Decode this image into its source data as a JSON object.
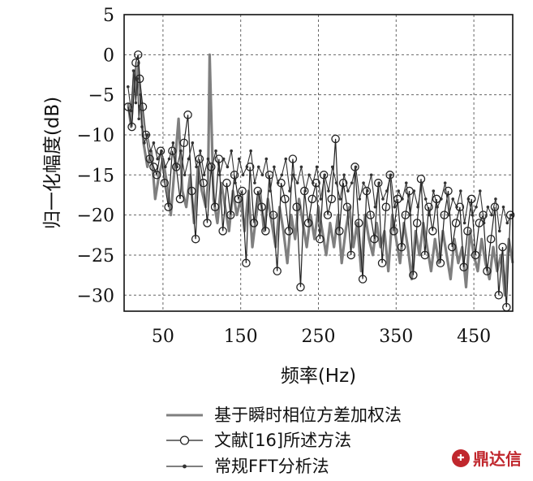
{
  "chart_data": {
    "type": "line",
    "title": "",
    "xlabel": "频率(Hz)",
    "ylabel": "归一化幅度(dB)",
    "xlim": [
      0,
      500
    ],
    "ylim": [
      -32,
      5
    ],
    "xticks": [
      50,
      150,
      250,
      350,
      450
    ],
    "yticks": [
      5,
      0,
      -5,
      -10,
      -15,
      -20,
      -25,
      -30
    ],
    "grid": true,
    "legend_position": "bottom",
    "series": [
      {
        "name": "基于瞬时相位方差加权法",
        "style": "gray-line",
        "color": "#7f7f7f",
        "x": [
          5,
          9,
          13,
          16,
          18,
          20,
          22,
          25,
          30,
          35,
          40,
          45,
          50,
          55,
          60,
          65,
          70,
          75,
          80,
          85,
          90,
          95,
          100,
          105,
          108,
          110,
          115,
          120,
          125,
          130,
          135,
          140,
          145,
          150,
          155,
          160,
          165,
          170,
          175,
          180,
          185,
          190,
          195,
          200,
          205,
          210,
          215,
          220,
          225,
          230,
          235,
          240,
          245,
          250,
          255,
          260,
          265,
          270,
          275,
          280,
          285,
          290,
          295,
          300,
          305,
          310,
          315,
          320,
          325,
          330,
          335,
          340,
          345,
          350,
          355,
          360,
          365,
          370,
          375,
          380,
          385,
          390,
          395,
          400,
          405,
          410,
          415,
          420,
          425,
          430,
          435,
          440,
          445,
          450,
          455,
          460,
          465,
          470,
          475,
          480,
          485,
          490,
          495,
          500
        ],
        "y": [
          -6,
          -9,
          -2,
          -5,
          -1,
          -4,
          -7,
          -11,
          -14,
          -12,
          -18,
          -15,
          -13,
          -16,
          -20,
          -14,
          -8,
          -17,
          -19,
          -15,
          -21,
          -14,
          -17,
          -19,
          -16,
          0,
          -18,
          -21,
          -16,
          -19,
          -22,
          -17,
          -20,
          -18,
          -22,
          -17,
          -24,
          -20,
          -17,
          -22,
          -18,
          -21,
          -24,
          -19,
          -22,
          -26,
          -20,
          -23,
          -18,
          -21,
          -24,
          -20,
          -23,
          -19,
          -22,
          -25,
          -21,
          -24,
          -20,
          -26,
          -22,
          -19,
          -24,
          -21,
          -27,
          -20,
          -23,
          -25,
          -21,
          -24,
          -22,
          -27,
          -20,
          -23,
          -26,
          -21,
          -24,
          -28,
          -22,
          -25,
          -21,
          -24,
          -27,
          -23,
          -26,
          -22,
          -25,
          -28,
          -23,
          -26,
          -24,
          -29,
          -22,
          -25,
          -27,
          -23,
          -26,
          -28,
          -24,
          -27,
          -25,
          -30,
          -23,
          -26
        ]
      },
      {
        "name": "文献[16]所述方法",
        "style": "line-circle",
        "color": "#222222",
        "x": [
          5,
          10,
          15,
          18,
          20,
          24,
          28,
          33,
          38,
          42,
          47,
          52,
          57,
          62,
          67,
          72,
          77,
          82,
          87,
          92,
          97,
          102,
          107,
          112,
          117,
          122,
          127,
          132,
          137,
          142,
          147,
          152,
          157,
          162,
          167,
          172,
          177,
          182,
          187,
          192,
          197,
          202,
          207,
          212,
          217,
          222,
          227,
          232,
          237,
          242,
          247,
          252,
          257,
          262,
          267,
          272,
          277,
          282,
          287,
          292,
          297,
          302,
          307,
          312,
          317,
          322,
          327,
          332,
          337,
          342,
          347,
          352,
          357,
          362,
          367,
          372,
          377,
          382,
          387,
          392,
          397,
          402,
          407,
          412,
          417,
          422,
          427,
          432,
          437,
          442,
          447,
          452,
          457,
          462,
          467,
          472,
          477,
          482,
          487,
          492,
          497
        ],
        "y": [
          -6.5,
          -9,
          -1,
          0,
          -3,
          -6.5,
          -10,
          -13,
          -14,
          -15,
          -12,
          -16,
          -19,
          -12,
          -14,
          -18,
          -11,
          -7.5,
          -17,
          -23,
          -13,
          -16,
          -21,
          -14,
          -19,
          -13,
          -22,
          -16,
          -20,
          -15,
          -18,
          -17,
          -26,
          -14,
          -21,
          -17,
          -19,
          -22,
          -15,
          -20,
          -27,
          -16,
          -18,
          -22,
          -13,
          -19,
          -29,
          -17,
          -21,
          -18,
          -16,
          -23,
          -15,
          -20,
          -18,
          -10.5,
          -22,
          -16,
          -19,
          -25,
          -14,
          -21,
          -28,
          -17,
          -20,
          -23,
          -16,
          -26,
          -19,
          -15,
          -22,
          -18,
          -24,
          -20,
          -17,
          -27.5,
          -21,
          -15.5,
          -25,
          -19,
          -22,
          -18,
          -26,
          -20,
          -17,
          -24,
          -21,
          -19,
          -26.5,
          -22,
          -18,
          -25,
          -21,
          -20,
          -27,
          -23,
          -19,
          -30,
          -24,
          -31.5,
          -20
        ]
      },
      {
        "name": "常规FFT分析法",
        "style": "line-dot",
        "color": "#333333",
        "x": [
          5,
          9,
          12,
          15,
          17,
          19,
          21,
          23,
          26,
          30,
          34,
          38,
          43,
          48,
          53,
          58,
          63,
          68,
          73,
          78,
          83,
          88,
          93,
          98,
          103,
          108,
          113,
          118,
          123,
          128,
          133,
          138,
          143,
          148,
          153,
          158,
          163,
          168,
          173,
          178,
          183,
          188,
          193,
          198,
          203,
          208,
          213,
          218,
          223,
          228,
          233,
          238,
          243,
          248,
          253,
          258,
          263,
          268,
          273,
          278,
          283,
          288,
          293,
          298,
          303,
          308,
          313,
          318,
          323,
          328,
          333,
          338,
          343,
          348,
          353,
          358,
          363,
          368,
          373,
          378,
          383,
          388,
          393,
          398,
          403,
          408,
          413,
          418,
          423,
          428,
          433,
          438,
          443,
          448,
          453,
          458,
          463,
          468,
          473,
          478,
          483,
          488,
          493,
          498
        ],
        "y": [
          -4,
          -7,
          -2,
          -6,
          -3,
          -8,
          -5,
          -9,
          -11,
          -10,
          -12,
          -11,
          -13,
          -12,
          -14,
          -13,
          -11,
          -14,
          -12,
          -15,
          -13,
          -11,
          -14,
          -12,
          -15,
          -13,
          -14,
          -12,
          -15,
          -13,
          -14,
          -12,
          -16,
          -13,
          -15,
          -14,
          -12,
          -16,
          -14,
          -15,
          -13,
          -17,
          -14,
          -16,
          -15,
          -13,
          -17,
          -15,
          -16,
          -14,
          -17,
          -15,
          -16,
          -14,
          -18,
          -15,
          -17,
          -14,
          -16,
          -18,
          -15,
          -17,
          -16,
          -14,
          -18,
          -16,
          -17,
          -15,
          -19,
          -16,
          -18,
          -17,
          -15,
          -19,
          -17,
          -18,
          -16,
          -20,
          -17,
          -19,
          -16,
          -18,
          -20,
          -17,
          -19,
          -18,
          -16,
          -20,
          -18,
          -19,
          -17,
          -21,
          -18,
          -20,
          -19,
          -17,
          -21,
          -19,
          -20,
          -18,
          -22,
          -19,
          -21,
          -20
        ]
      }
    ]
  },
  "watermark": {
    "text": "鼎达信",
    "color": "#c0272d"
  }
}
